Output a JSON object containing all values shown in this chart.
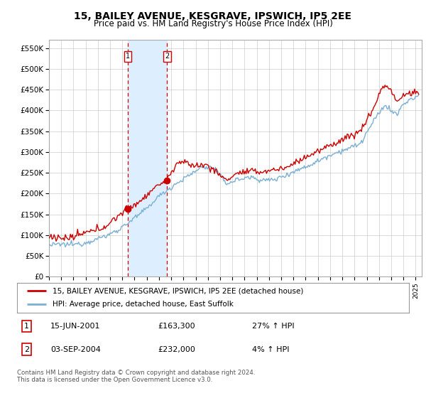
{
  "title": "15, BAILEY AVENUE, KESGRAVE, IPSWICH, IP5 2EE",
  "subtitle": "Price paid vs. HM Land Registry's House Price Index (HPI)",
  "ylim": [
    0,
    570000
  ],
  "yticks": [
    0,
    50000,
    100000,
    150000,
    200000,
    250000,
    300000,
    350000,
    400000,
    450000,
    500000,
    550000
  ],
  "xlim_start": 1995.0,
  "xlim_end": 2025.5,
  "legend_line1": "15, BAILEY AVENUE, KESGRAVE, IPSWICH, IP5 2EE (detached house)",
  "legend_line2": "HPI: Average price, detached house, East Suffolk",
  "transaction1_date": "15-JUN-2001",
  "transaction1_price": "£163,300",
  "transaction1_hpi": "27% ↑ HPI",
  "transaction1_year": 2001.45,
  "transaction1_price_val": 163300,
  "transaction2_date": "03-SEP-2004",
  "transaction2_price": "£232,000",
  "transaction2_hpi": "4% ↑ HPI",
  "transaction2_year": 2004.67,
  "transaction2_price_val": 232000,
  "red_line_color": "#cc0000",
  "blue_line_color": "#7bafd4",
  "shade_color": "#ddeeff",
  "dashed_line_color": "#cc0000",
  "grid_color": "#cccccc",
  "background_color": "#ffffff",
  "footer_text": "Contains HM Land Registry data © Crown copyright and database right 2024.\nThis data is licensed under the Open Government Licence v3.0.",
  "title_fontsize": 10,
  "subtitle_fontsize": 8.5,
  "axis_fontsize": 7.5,
  "legend_fontsize": 8
}
